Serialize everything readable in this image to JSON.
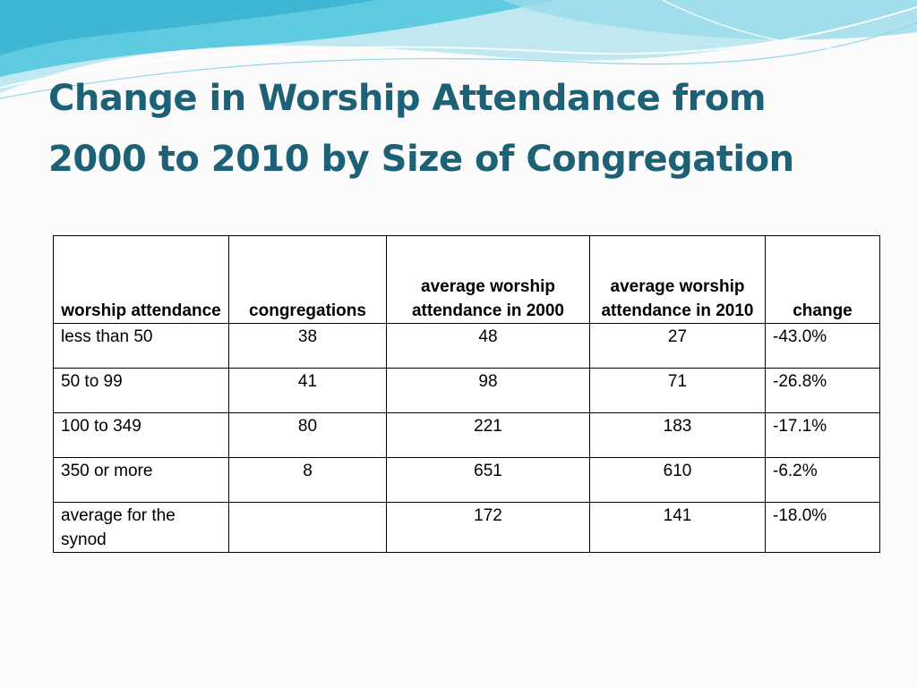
{
  "slide": {
    "title_line1": "Change in Worship Attendance from",
    "title_line2": "2000 to 2010 by Size of Congregation"
  },
  "table": {
    "headers": [
      "worship attendance",
      "congregations",
      "average worship attendance in 2000",
      "average worship attendance in 2010",
      "change"
    ],
    "rows": [
      {
        "label": "less than 50",
        "congregations": "38",
        "avg2000": "48",
        "avg2010": "27",
        "change": "-43.0%"
      },
      {
        "label": "50 to 99",
        "congregations": "41",
        "avg2000": "98",
        "avg2010": "71",
        "change": "-26.8%"
      },
      {
        "label": "100 to 349",
        "congregations": "80",
        "avg2000": "221",
        "avg2010": "183",
        "change": "-17.1%"
      },
      {
        "label": "350 or more",
        "congregations": "8",
        "avg2000": "651",
        "avg2010": "610",
        "change": "-6.2%"
      },
      {
        "label": "average for the synod",
        "congregations": "",
        "avg2000": "172",
        "avg2010": "141",
        "change": "-18.0%"
      }
    ]
  },
  "colors": {
    "title": "#1d6177",
    "wave_dark": "#4cc3dc",
    "wave_light": "#bfe8f0",
    "table_border": "#000000"
  }
}
